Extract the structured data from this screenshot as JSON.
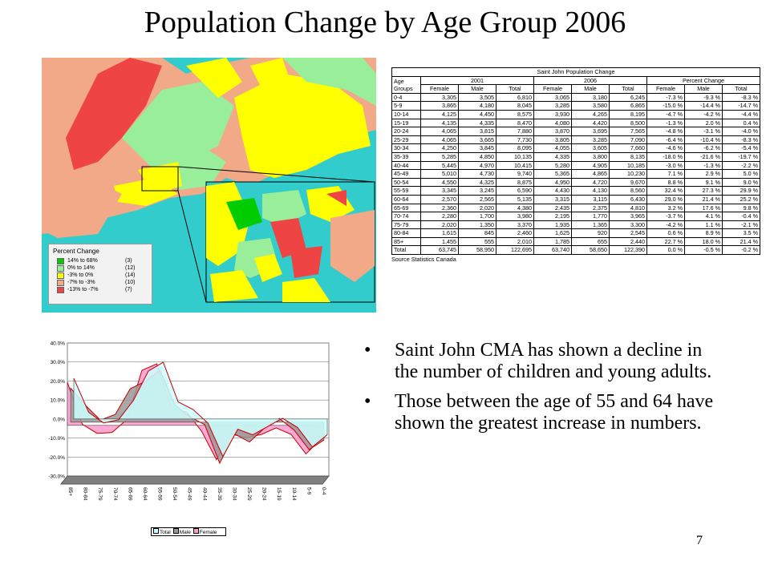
{
  "title": "Population Change by Age Group 2006",
  "map": {
    "legend_title": "Percent Change",
    "legend": [
      {
        "label": "14% to 68%",
        "count": "(3)",
        "color": "#00cc00"
      },
      {
        "label": "0% to 14%",
        "count": "(12)",
        "color": "#99ee99"
      },
      {
        "label": "-3% to 0%",
        "count": "(14)",
        "color": "#ffff00"
      },
      {
        "label": "-7% to -3%",
        "count": "(10)",
        "color": "#f2a987"
      },
      {
        "label": "-13% to -7%",
        "count": "(7)",
        "color": "#ee4444"
      }
    ]
  },
  "table": {
    "title": "Saint John Population Change",
    "groups": [
      "2001",
      "2006",
      "Percent Change"
    ],
    "row_header": "Age Groups",
    "sub_headers": [
      "Female",
      "Male",
      "Total",
      "Female",
      "Male",
      "Total",
      "Female",
      "Male",
      "Total"
    ],
    "rows": [
      [
        "0-4",
        "3,305",
        "3,505",
        "6,810",
        "3,065",
        "3,180",
        "6,245",
        "-7.3 %",
        "-9.3 %",
        "-8.3 %"
      ],
      [
        "5-9",
        "3,865",
        "4,180",
        "8,045",
        "3,285",
        "3,580",
        "6,865",
        "-15.0 %",
        "-14.4 %",
        "-14.7 %"
      ],
      [
        "10-14",
        "4,125",
        "4,450",
        "8,575",
        "3,930",
        "4,265",
        "8,195",
        "-4.7 %",
        "-4.2 %",
        "-4.4 %"
      ],
      [
        "15-19",
        "4,135",
        "4,335",
        "8,470",
        "4,080",
        "4,420",
        "8,500",
        "-1.3 %",
        "2.0 %",
        "0.4 %"
      ],
      [
        "20-24",
        "4,065",
        "3,815",
        "7,880",
        "3,870",
        "3,695",
        "7,565",
        "-4.8 %",
        "-3.1 %",
        "-4.0 %"
      ],
      [
        "25-29",
        "4,065",
        "3,665",
        "7,730",
        "3,805",
        "3,285",
        "7,090",
        "-6.4 %",
        "-10.4 %",
        "-8.3 %"
      ],
      [
        "30-34",
        "4,250",
        "3,845",
        "8,095",
        "4,055",
        "3,605",
        "7,660",
        "-4.6 %",
        "-6.2 %",
        "-5.4 %"
      ],
      [
        "35-39",
        "5,285",
        "4,850",
        "10,135",
        "4,335",
        "3,800",
        "8,135",
        "-18.0 %",
        "-21.6 %",
        "-19.7 %"
      ],
      [
        "40-44",
        "5,445",
        "4,970",
        "10,415",
        "5,280",
        "4,905",
        "10,185",
        "-3.0 %",
        "-1.3 %",
        "-2.2 %"
      ],
      [
        "45-49",
        "5,010",
        "4,730",
        "9,740",
        "5,365",
        "4,865",
        "10,230",
        "7.1 %",
        "2.9 %",
        "5.0 %"
      ],
      [
        "50-54",
        "4,550",
        "4,325",
        "8,875",
        "4,950",
        "4,720",
        "9,670",
        "8.8 %",
        "9.1 %",
        "9.0 %"
      ],
      [
        "55-59",
        "3,345",
        "3,245",
        "6,590",
        "4,430",
        "4,130",
        "8,560",
        "32.4 %",
        "27.3 %",
        "29.9 %"
      ],
      [
        "60-64",
        "2,570",
        "2,565",
        "5,135",
        "3,315",
        "3,115",
        "6,430",
        "29.0 %",
        "21.4 %",
        "25.2 %"
      ],
      [
        "65-69",
        "2,360",
        "2,020",
        "4,380",
        "2,435",
        "2,375",
        "4,810",
        "3.2 %",
        "17.6 %",
        "9.8 %"
      ],
      [
        "70-74",
        "2,280",
        "1,700",
        "3,980",
        "2,195",
        "1,770",
        "3,965",
        "-3.7 %",
        "4.1 %",
        "-0.4 %"
      ],
      [
        "75-79",
        "2,020",
        "1,350",
        "3,370",
        "1,935",
        "1,365",
        "3,300",
        "-4.2 %",
        "1.1 %",
        "-2.1 %"
      ],
      [
        "80-84",
        "1,615",
        "845",
        "2,460",
        "1,625",
        "920",
        "2,545",
        "0.6 %",
        "8.9 %",
        "3.5 %"
      ],
      [
        "85+",
        "1,455",
        "555",
        "2,010",
        "1,785",
        "655",
        "2,440",
        "22.7 %",
        "18.0 %",
        "21.4 %"
      ],
      [
        "Total",
        "63,745",
        "58,950",
        "122,695",
        "63,740",
        "58,650",
        "122,390",
        "0.0 %",
        "-0.5 %",
        "-0.2 %"
      ]
    ],
    "source": "Source Statistics Canada"
  },
  "chart_data": {
    "type": "area",
    "categories": [
      "85+",
      "80-84",
      "75-79",
      "70-74",
      "65-69",
      "60-64",
      "55-59",
      "50-54",
      "45-49",
      "40-44",
      "35-39",
      "30-34",
      "25-29",
      "20-24",
      "15-19",
      "10-14",
      "5-9",
      "0-4"
    ],
    "tick_labels": [
      "85+",
      "80-84",
      "75-79",
      "70-74",
      "65-69",
      "60-64",
      "55-59",
      "50-54",
      "45-49",
      "40-44",
      "35-39",
      "30-34",
      "25-29",
      "20-24",
      "15-19",
      "10-14",
      "5-9",
      "0-4"
    ],
    "ylim": [
      -30,
      40
    ],
    "yticks": [
      "40.0%",
      "30.0%",
      "20.0%",
      "10.0%",
      "0.0%",
      "-10.0%",
      "-20.0%",
      "-30.0%"
    ],
    "series": [
      {
        "name": "Total",
        "color": "#ccffff",
        "values": [
          21.4,
          3.5,
          -2.1,
          -0.4,
          9.8,
          25.2,
          29.9,
          9.0,
          5.0,
          -2.2,
          -19.7,
          -5.4,
          -8.3,
          -4.0,
          0.4,
          -4.4,
          -14.7,
          -8.3
        ]
      },
      {
        "name": "Male",
        "color": "#999999",
        "values": [
          18.0,
          8.9,
          1.1,
          4.1,
          17.6,
          21.4,
          27.3,
          9.1,
          2.9,
          -1.3,
          -21.6,
          -6.2,
          -10.4,
          -3.1,
          2.0,
          -4.2,
          -14.4,
          -9.3
        ]
      },
      {
        "name": "Female",
        "color": "#ff99cc",
        "values": [
          22.7,
          0.6,
          -4.2,
          -3.7,
          3.2,
          29.0,
          32.4,
          8.8,
          7.1,
          -3.0,
          -18.0,
          -4.6,
          -6.4,
          -4.8,
          -1.3,
          -4.7,
          -15.0,
          -7.3
        ]
      }
    ],
    "legend": [
      "Total",
      "Male",
      "Female"
    ],
    "grid": true
  },
  "bullets": [
    "Saint John CMA has shown a decline in the number of children and young adults.",
    "Those between the age of 55 and 64 have shown the greatest increase in numbers."
  ],
  "bullet_char": "•",
  "slide_number": "7"
}
